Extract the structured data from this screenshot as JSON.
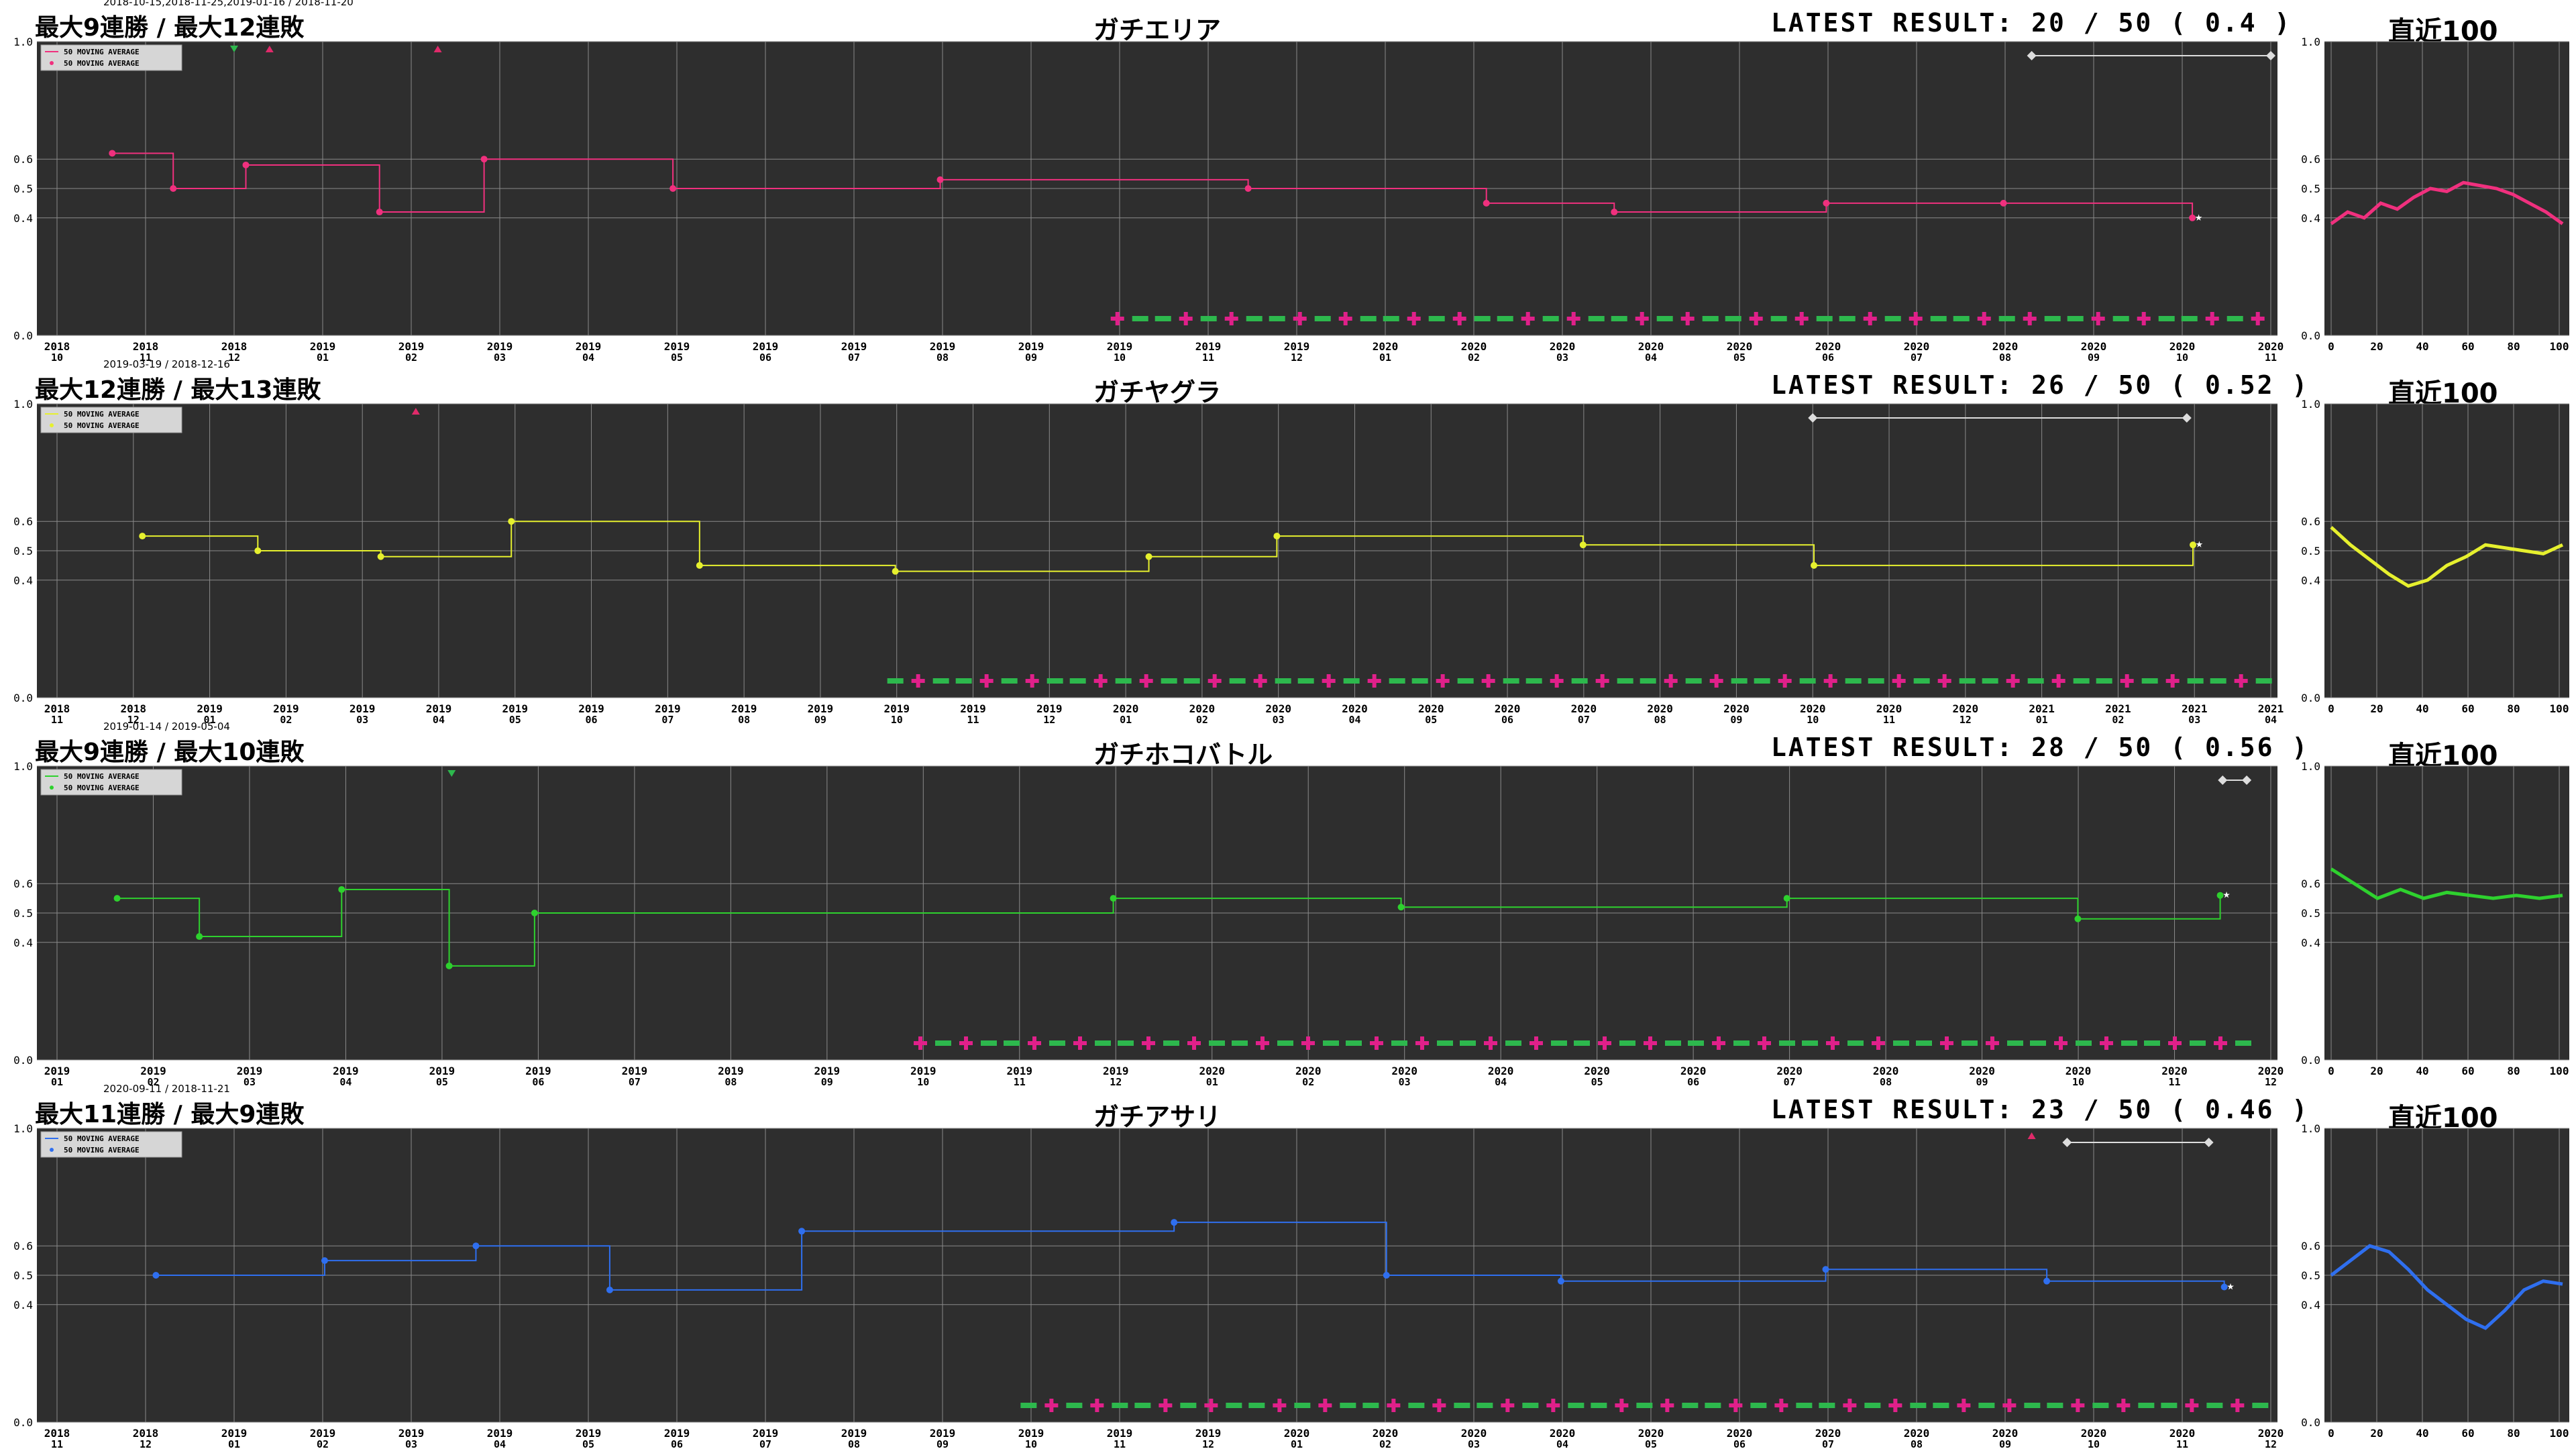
{
  "legend": {
    "line": "50 MOVING AVERAGE",
    "dots": "50 MOVING AVERAGE"
  },
  "recent_title": "直近100",
  "charts": [
    {
      "mode": "ガチエリア",
      "streak": "最大9連勝 / 最大12連敗",
      "streak_dates": "2018-10-15,2018-11-25,2019-01-16 / 2018-11-20",
      "latest": "LATEST RESULT: 20 / 50 ( 0.4 )",
      "color": "#f0307e",
      "labels": [
        [
          "2018",
          "10"
        ],
        [
          "2018",
          "11"
        ],
        [
          "2018",
          "12"
        ],
        [
          "2019",
          "01"
        ],
        [
          "2019",
          "02"
        ],
        [
          "2019",
          "03"
        ],
        [
          "2019",
          "04"
        ],
        [
          "2019",
          "05"
        ],
        [
          "2019",
          "06"
        ],
        [
          "2019",
          "07"
        ],
        [
          "2019",
          "08"
        ],
        [
          "2019",
          "09"
        ],
        [
          "2019",
          "10"
        ],
        [
          "2019",
          "11"
        ],
        [
          "2019",
          "12"
        ],
        [
          "2020",
          "01"
        ],
        [
          "2020",
          "02"
        ],
        [
          "2020",
          "03"
        ],
        [
          "2020",
          "04"
        ],
        [
          "2020",
          "05"
        ],
        [
          "2020",
          "06"
        ],
        [
          "2020",
          "07"
        ],
        [
          "2020",
          "08"
        ],
        [
          "2020",
          "09"
        ],
        [
          "2020",
          "10"
        ],
        [
          "2020",
          "11"
        ]
      ],
      "markers": [
        {
          "i": 2,
          "type": "down"
        },
        {
          "i": 2.4,
          "type": "up"
        },
        {
          "i": 4.3,
          "type": "up"
        }
      ],
      "bracket": [
        22.3,
        25
      ]
    },
    {
      "mode": "ガチヤグラ",
      "streak": "最大12連勝 / 最大13連敗",
      "streak_dates": "2019-03-19 / 2018-12-16",
      "latest": "LATEST RESULT: 26 / 50 ( 0.52 )",
      "color": "#e6f02e",
      "labels": [
        [
          "2018",
          "11"
        ],
        [
          "2018",
          "12"
        ],
        [
          "2019",
          "01"
        ],
        [
          "2019",
          "02"
        ],
        [
          "2019",
          "03"
        ],
        [
          "2019",
          "04"
        ],
        [
          "2019",
          "05"
        ],
        [
          "2019",
          "06"
        ],
        [
          "2019",
          "07"
        ],
        [
          "2019",
          "08"
        ],
        [
          "2019",
          "09"
        ],
        [
          "2019",
          "10"
        ],
        [
          "2019",
          "11"
        ],
        [
          "2019",
          "12"
        ],
        [
          "2020",
          "01"
        ],
        [
          "2020",
          "02"
        ],
        [
          "2020",
          "03"
        ],
        [
          "2020",
          "04"
        ],
        [
          "2020",
          "05"
        ],
        [
          "2020",
          "06"
        ],
        [
          "2020",
          "07"
        ],
        [
          "2020",
          "08"
        ],
        [
          "2020",
          "09"
        ],
        [
          "2020",
          "10"
        ],
        [
          "2020",
          "11"
        ],
        [
          "2020",
          "12"
        ],
        [
          "2021",
          "01"
        ],
        [
          "2021",
          "02"
        ],
        [
          "2021",
          "03"
        ],
        [
          "2021",
          "04"
        ]
      ],
      "markers": [
        {
          "i": 4.7,
          "type": "up"
        }
      ],
      "bracket": [
        23,
        27.9
      ]
    },
    {
      "mode": "ガチホコバトル",
      "streak": "最大9連勝 / 最大10連敗",
      "streak_dates": "2019-01-14 / 2019-05-04",
      "latest": "LATEST RESULT: 28 / 50 ( 0.56 )",
      "color": "#2ed12e",
      "labels": [
        [
          "2019",
          "01"
        ],
        [
          "2019",
          "02"
        ],
        [
          "2019",
          "03"
        ],
        [
          "2019",
          "04"
        ],
        [
          "2019",
          "05"
        ],
        [
          "2019",
          "06"
        ],
        [
          "2019",
          "07"
        ],
        [
          "2019",
          "08"
        ],
        [
          "2019",
          "09"
        ],
        [
          "2019",
          "10"
        ],
        [
          "2019",
          "11"
        ],
        [
          "2019",
          "12"
        ],
        [
          "2020",
          "01"
        ],
        [
          "2020",
          "02"
        ],
        [
          "2020",
          "03"
        ],
        [
          "2020",
          "04"
        ],
        [
          "2020",
          "05"
        ],
        [
          "2020",
          "06"
        ],
        [
          "2020",
          "07"
        ],
        [
          "2020",
          "08"
        ],
        [
          "2020",
          "09"
        ],
        [
          "2020",
          "10"
        ],
        [
          "2020",
          "11"
        ],
        [
          "2020",
          "12"
        ]
      ],
      "markers": [
        {
          "i": 4.1,
          "type": "down"
        }
      ],
      "bracket": [
        22.5,
        22.75
      ]
    },
    {
      "mode": "ガチアサリ",
      "streak": "最大11連勝 / 最大9連敗",
      "streak_dates": "2020-09-11 / 2018-11-21",
      "latest": "LATEST RESULT: 23 / 50 ( 0.46 )",
      "color": "#2f6fef",
      "labels": [
        [
          "2018",
          "11"
        ],
        [
          "2018",
          "12"
        ],
        [
          "2019",
          "01"
        ],
        [
          "2019",
          "02"
        ],
        [
          "2019",
          "03"
        ],
        [
          "2019",
          "04"
        ],
        [
          "2019",
          "05"
        ],
        [
          "2019",
          "06"
        ],
        [
          "2019",
          "07"
        ],
        [
          "2019",
          "08"
        ],
        [
          "2019",
          "09"
        ],
        [
          "2019",
          "10"
        ],
        [
          "2019",
          "11"
        ],
        [
          "2019",
          "12"
        ],
        [
          "2020",
          "01"
        ],
        [
          "2020",
          "02"
        ],
        [
          "2020",
          "03"
        ],
        [
          "2020",
          "04"
        ],
        [
          "2020",
          "05"
        ],
        [
          "2020",
          "06"
        ],
        [
          "2020",
          "07"
        ],
        [
          "2020",
          "08"
        ],
        [
          "2020",
          "09"
        ],
        [
          "2020",
          "10"
        ],
        [
          "2020",
          "11"
        ],
        [
          "2020",
          "12"
        ]
      ],
      "markers": [
        {
          "i": 22.3,
          "type": "up"
        }
      ],
      "bracket": [
        22.7,
        24.3
      ]
    }
  ],
  "axis": {
    "y_ticks": [
      "0.0",
      "0.4",
      "0.5",
      "0.6",
      "1.0"
    ],
    "recent_x_ticks": [
      "0",
      "20",
      "40",
      "60",
      "80",
      "100"
    ]
  },
  "chart_data": [
    {
      "type": "line",
      "title": "ガチエリア",
      "ylim": [
        0,
        1
      ],
      "series": [
        {
          "name": "50 MOVING AVERAGE",
          "x": [
            "2018-10-20",
            "2018-11-10",
            "2018-12-05",
            "2019-01-20",
            "2019-02-25",
            "2019-05-01",
            "2019-08-01",
            "2019-11-15",
            "2020-02-05",
            "2020-03-20",
            "2020-06-01",
            "2020-08-01",
            "2020-10-05"
          ],
          "values": [
            0.62,
            0.5,
            0.58,
            0.42,
            0.6,
            0.5,
            0.53,
            0.5,
            0.45,
            0.42,
            0.45,
            0.45,
            0.4
          ]
        }
      ],
      "recent100": [
        0.38,
        0.42,
        0.4,
        0.45,
        0.43,
        0.47,
        0.5,
        0.49,
        0.52,
        0.51,
        0.5,
        0.48,
        0.45,
        0.42,
        0.38
      ]
    },
    {
      "type": "line",
      "title": "ガチヤグラ",
      "ylim": [
        0,
        1
      ],
      "series": [
        {
          "name": "50 MOVING AVERAGE",
          "x": [
            "2018-12-05",
            "2019-01-20",
            "2019-03-10",
            "2019-05-01",
            "2019-07-15",
            "2019-10-01",
            "2020-01-10",
            "2020-03-01",
            "2020-07-01",
            "2020-10-01",
            "2021-03-01"
          ],
          "values": [
            0.55,
            0.5,
            0.48,
            0.6,
            0.45,
            0.43,
            0.48,
            0.55,
            0.52,
            0.45,
            0.52
          ]
        }
      ],
      "recent100": [
        0.58,
        0.52,
        0.47,
        0.42,
        0.38,
        0.4,
        0.45,
        0.48,
        0.52,
        0.51,
        0.5,
        0.49,
        0.52
      ]
    },
    {
      "type": "line",
      "title": "ガチホコバトル",
      "ylim": [
        0,
        1
      ],
      "series": [
        {
          "name": "50 MOVING AVERAGE",
          "x": [
            "2019-01-20",
            "2019-02-15",
            "2019-04-01",
            "2019-05-05",
            "2019-06-01",
            "2019-12-01",
            "2020-03-01",
            "2020-07-01",
            "2020-10-01",
            "2020-11-15"
          ],
          "values": [
            0.55,
            0.42,
            0.58,
            0.32,
            0.5,
            0.55,
            0.52,
            0.55,
            0.48,
            0.56
          ]
        }
      ],
      "recent100": [
        0.65,
        0.6,
        0.55,
        0.58,
        0.55,
        0.57,
        0.56,
        0.55,
        0.56,
        0.55,
        0.56
      ]
    },
    {
      "type": "line",
      "title": "ガチアサリ",
      "ylim": [
        0,
        1
      ],
      "series": [
        {
          "name": "50 MOVING AVERAGE",
          "x": [
            "2018-12-05",
            "2019-02-01",
            "2019-03-25",
            "2019-05-10",
            "2019-07-15",
            "2019-11-20",
            "2020-02-01",
            "2020-04-01",
            "2020-07-01",
            "2020-09-15",
            "2020-11-15"
          ],
          "values": [
            0.5,
            0.55,
            0.6,
            0.45,
            0.65,
            0.68,
            0.5,
            0.48,
            0.52,
            0.48,
            0.46
          ]
        }
      ],
      "recent100": [
        0.5,
        0.55,
        0.6,
        0.58,
        0.52,
        0.45,
        0.4,
        0.35,
        0.32,
        0.38,
        0.45,
        0.48,
        0.47
      ]
    }
  ]
}
